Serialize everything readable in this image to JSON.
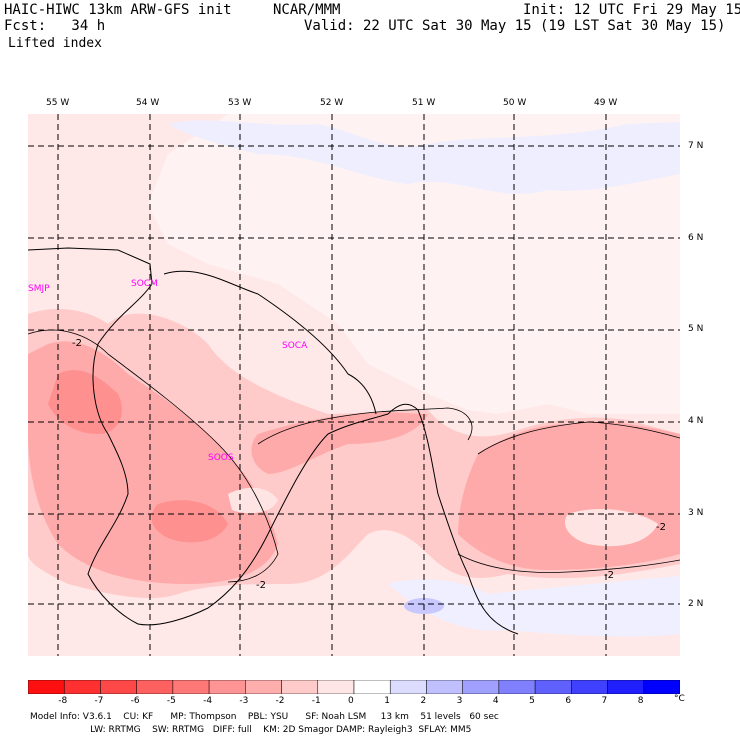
{
  "header": {
    "model_line": "HAIC-HIWC 13km ARW-GFS init",
    "center": "NCAR/MMM",
    "init": "Init: 12 UTC Fri 29 May 15",
    "fcst": "Fcst:   34 h",
    "valid": "Valid: 22 UTC Sat 30 May 15 (19 LST Sat 30 May 15)",
    "field": "Lifted index"
  },
  "map": {
    "lon_labels": [
      "55 W",
      "54 W",
      "53 W",
      "52 W",
      "51 W",
      "50 W",
      "49 W"
    ],
    "lat_labels": [
      "7 N",
      "6 N",
      "5 N",
      "4 N",
      "3 N",
      "2 N"
    ],
    "stations": [
      "SMJP",
      "SOCM",
      "SOCA",
      "SOOS"
    ],
    "contour_labels": [
      "-2",
      "-2",
      "-2",
      "-2"
    ]
  },
  "colorbar": {
    "levels": [
      "-8",
      "-7",
      "-6",
      "-5",
      "-4",
      "-3",
      "-2",
      "-1",
      "0",
      "1",
      "2",
      "3",
      "4",
      "5",
      "6",
      "7",
      "8"
    ],
    "unit": "°C",
    "colors": [
      "#ff1010",
      "#ff3030",
      "#ff4848",
      "#ff6060",
      "#ff7878",
      "#ff9494",
      "#ffaeae",
      "#ffcaca",
      "#ffe6e6",
      "#ffffff",
      "#dcdcff",
      "#c0c0ff",
      "#a0a0ff",
      "#8080ff",
      "#6060ff",
      "#4040ff",
      "#2020ff",
      "#0000ff"
    ]
  },
  "footer": {
    "line1": "Model Info: V3.6.1    CU: KF      MP: Thompson    PBL: YSU      SF: Noah LSM     13 km    51 levels   60 sec",
    "line2": "                     LW: RRTMG    SW: RRTMG   DIFF: full    KM: 2D Smagor DAMP: Rayleigh3  SFLAY: MM5"
  }
}
